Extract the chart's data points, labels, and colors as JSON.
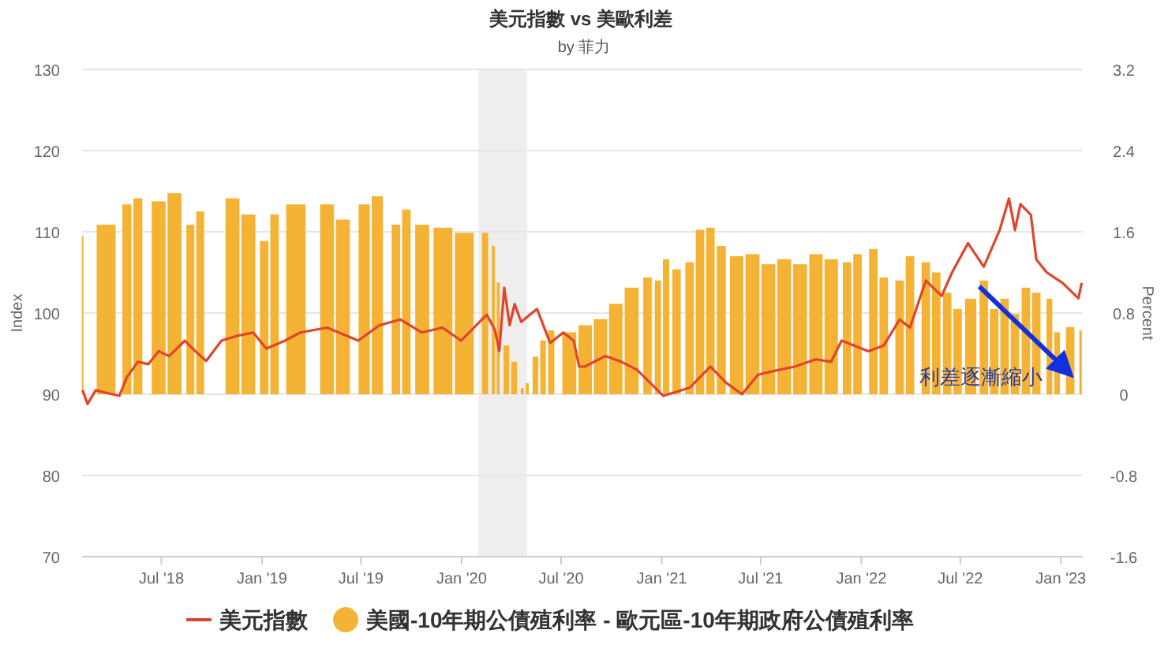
{
  "chart_data": {
    "type": "line",
    "title": "美元指數 vs 美歐利差",
    "subtitle": "by 菲力",
    "ylabel": "Index",
    "y2label": "Percent",
    "xlim": [
      "2018-02-06",
      "2023-02-10"
    ],
    "xticks": [
      {
        "value": "2018-07-01",
        "label": "Jul '18"
      },
      {
        "value": "2019-01-01",
        "label": "Jan '19"
      },
      {
        "value": "2019-07-01",
        "label": "Jul '19"
      },
      {
        "value": "2020-01-01",
        "label": "Jan '20"
      },
      {
        "value": "2020-07-01",
        "label": "Jul '20"
      },
      {
        "value": "2021-01-01",
        "label": "Jan '21"
      },
      {
        "value": "2021-07-01",
        "label": "Jul '21"
      },
      {
        "value": "2022-01-01",
        "label": "Jan '22"
      },
      {
        "value": "2022-07-01",
        "label": "Jul '22"
      },
      {
        "value": "2023-01-01",
        "label": "Jan '23"
      }
    ],
    "ylim": [
      70,
      130
    ],
    "yticks": [
      70,
      80,
      90,
      100,
      110,
      120,
      130
    ],
    "y2lim": [
      -1.6,
      3.2
    ],
    "y2ticks": [
      -1.6,
      -0.8,
      0,
      0.8,
      1.6,
      2.4,
      3.2
    ],
    "grid": "y",
    "legend": "bottom",
    "bands": [
      {
        "axis": "x",
        "from": "2020-02-01",
        "to": "2020-04-30",
        "color": "#eeeeee"
      }
    ],
    "annotations": [
      {
        "text": "利差逐漸縮小",
        "x": "2023-01-25",
        "y": 92
      }
    ],
    "series": [
      {
        "name": "美國-10年期公債殖利率 - 歐元區-10年期政府公債殖利率",
        "type": "bar",
        "axis": "y2",
        "color": "#f5b335",
        "x": [
          "2018-02-07",
          "2018-03-22",
          "2018-04-29",
          "2018-05-19",
          "2018-06-26",
          "2018-07-25",
          "2018-08-23",
          "2018-09-10",
          "2018-11-08",
          "2018-12-07",
          "2019-01-05",
          "2019-01-24",
          "2019-03-04",
          "2019-04-30",
          "2019-05-29",
          "2019-07-07",
          "2019-07-31",
          "2019-09-03",
          "2019-09-22",
          "2019-10-21",
          "2019-11-28",
          "2020-01-06",
          "2020-02-13",
          "2020-02-28",
          "2020-03-08",
          "2020-03-23",
          "2020-04-06",
          "2020-04-21",
          "2020-04-30",
          "2020-05-15",
          "2020-05-29",
          "2020-06-13",
          "2020-07-16",
          "2020-08-14",
          "2020-09-11",
          "2020-10-09",
          "2020-11-07",
          "2020-12-06",
          "2020-12-25",
          "2021-01-09",
          "2021-01-28",
          "2021-02-21",
          "2021-03-12",
          "2021-03-31",
          "2021-04-20",
          "2021-05-18",
          "2021-06-16",
          "2021-07-15",
          "2021-08-13",
          "2021-09-11",
          "2021-10-10",
          "2021-11-07",
          "2021-12-06",
          "2021-12-25",
          "2022-01-23",
          "2022-02-11",
          "2022-03-12",
          "2022-03-31",
          "2022-04-29",
          "2022-05-18",
          "2022-06-07",
          "2022-06-26",
          "2022-07-20",
          "2022-08-13",
          "2022-09-01",
          "2022-09-20",
          "2022-10-09",
          "2022-10-29",
          "2022-11-17",
          "2022-12-11",
          "2022-12-25",
          "2023-01-18",
          "2023-02-06"
        ],
        "values": [
          1.56,
          1.67,
          1.87,
          1.93,
          1.9,
          1.98,
          1.67,
          1.8,
          1.93,
          1.77,
          1.51,
          1.77,
          1.87,
          1.87,
          1.72,
          1.87,
          1.95,
          1.67,
          1.82,
          1.67,
          1.64,
          1.59,
          1.59,
          1.46,
          1.1,
          0.48,
          0.32,
          0.06,
          0.11,
          0.37,
          0.53,
          0.63,
          0.61,
          0.68,
          0.74,
          0.89,
          1.05,
          1.15,
          1.12,
          1.33,
          1.23,
          1.3,
          1.62,
          1.64,
          1.46,
          1.36,
          1.38,
          1.28,
          1.33,
          1.28,
          1.38,
          1.33,
          1.3,
          1.38,
          1.43,
          1.15,
          1.12,
          1.36,
          1.3,
          1.2,
          1.0,
          0.84,
          0.94,
          1.12,
          0.84,
          0.94,
          0.79,
          1.05,
          1.0,
          0.94,
          0.61,
          0.66,
          0.63
        ]
      },
      {
        "name": "美元指數",
        "color": "#e0452c",
        "x": [
          "2018-02-07",
          "2018-02-16",
          "2018-03-03",
          "2018-03-27",
          "2018-04-15",
          "2018-04-29",
          "2018-05-19",
          "2018-06-07",
          "2018-06-26",
          "2018-07-15",
          "2018-08-13",
          "2018-09-01",
          "2018-09-21",
          "2018-10-19",
          "2018-11-17",
          "2018-12-16",
          "2019-01-09",
          "2019-02-12",
          "2019-03-12",
          "2019-04-30",
          "2019-06-26",
          "2019-08-04",
          "2019-09-11",
          "2019-10-20",
          "2019-11-27",
          "2019-12-31",
          "2020-02-16",
          "2020-03-02",
          "2020-03-10",
          "2020-03-19",
          "2020-03-29",
          "2020-04-07",
          "2020-04-19",
          "2020-05-18",
          "2020-06-11",
          "2020-07-05",
          "2020-07-24",
          "2020-08-03",
          "2020-08-13",
          "2020-09-20",
          "2020-10-19",
          "2020-11-17",
          "2021-01-04",
          "2021-02-21",
          "2021-03-31",
          "2021-04-29",
          "2021-05-28",
          "2021-06-26",
          "2021-08-03",
          "2021-09-01",
          "2021-10-10",
          "2021-11-07",
          "2021-11-26",
          "2022-01-14",
          "2022-02-11",
          "2022-03-12",
          "2022-03-31",
          "2022-04-29",
          "2022-05-28",
          "2022-06-16",
          "2022-07-15",
          "2022-08-13",
          "2022-09-11",
          "2022-09-28",
          "2022-10-09",
          "2022-10-19",
          "2022-11-07",
          "2022-11-17",
          "2022-12-06",
          "2023-01-04",
          "2023-02-02",
          "2023-02-08"
        ],
        "values": [
          90.5,
          88.8,
          90.5,
          90.1,
          89.8,
          92.1,
          94.0,
          93.7,
          95.3,
          94.7,
          96.6,
          95.3,
          94.1,
          96.6,
          97.2,
          97.6,
          95.6,
          96.6,
          97.6,
          98.2,
          96.6,
          98.5,
          99.2,
          97.6,
          98.2,
          96.6,
          99.8,
          97.9,
          95.3,
          103.1,
          98.5,
          101.1,
          98.9,
          100.5,
          96.3,
          97.6,
          96.6,
          93.4,
          93.4,
          94.7,
          94.0,
          93.0,
          89.8,
          90.8,
          93.4,
          91.4,
          90.0,
          92.4,
          93.0,
          93.4,
          94.3,
          94.0,
          96.6,
          95.3,
          96.0,
          99.2,
          98.2,
          104.0,
          102.1,
          105.0,
          108.6,
          105.7,
          110.2,
          114.1,
          110.2,
          113.4,
          112.1,
          106.6,
          105.0,
          103.7,
          101.8,
          103.7
        ]
      }
    ]
  }
}
